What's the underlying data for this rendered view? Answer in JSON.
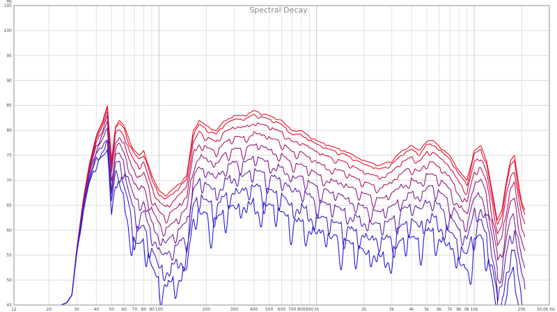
{
  "chart_data": {
    "type": "line",
    "title": "Spectral Decay",
    "xscale": "log",
    "xlim": [
      12,
      30000
    ],
    "ylim": [
      45,
      105
    ],
    "x_unit": "Hz",
    "y_unit": "dB",
    "grid": true,
    "legend": "none",
    "y_ticks": [
      "45",
      "50",
      "55",
      "60",
      "65",
      "70",
      "75",
      "80",
      "85",
      "90",
      "95",
      "100",
      "105"
    ],
    "x_ticks": [
      {
        "v": 12,
        "label": "12"
      },
      {
        "v": 20,
        "label": "20"
      },
      {
        "v": 30,
        "label": "30"
      },
      {
        "v": 40,
        "label": "40"
      },
      {
        "v": 50,
        "label": "50"
      },
      {
        "v": 60,
        "label": "60"
      },
      {
        "v": 70,
        "label": "70"
      },
      {
        "v": 80,
        "label": "80"
      },
      {
        "v": 90,
        "label": "90"
      },
      {
        "v": 100,
        "label": "100"
      },
      {
        "v": 200,
        "label": "200"
      },
      {
        "v": 300,
        "label": "300"
      },
      {
        "v": 400,
        "label": "400"
      },
      {
        "v": 500,
        "label": "500"
      },
      {
        "v": 600,
        "label": "600"
      },
      {
        "v": 700,
        "label": "700"
      },
      {
        "v": 800,
        "label": "800"
      },
      {
        "v": 900,
        "label": "900"
      },
      {
        "v": 1000,
        "label": "1k"
      },
      {
        "v": 2000,
        "label": "2k"
      },
      {
        "v": 3000,
        "label": "3k"
      },
      {
        "v": 4000,
        "label": "4k"
      },
      {
        "v": 5000,
        "label": "5k"
      },
      {
        "v": 6000,
        "label": "6k"
      },
      {
        "v": 7000,
        "label": "7k"
      },
      {
        "v": 8000,
        "label": "8k"
      },
      {
        "v": 9000,
        "label": "9k"
      },
      {
        "v": 10000,
        "label": "10k"
      },
      {
        "v": 20000,
        "label": "20k"
      },
      {
        "v": 30000,
        "label": "30,0k Hz"
      }
    ],
    "envelope": {
      "x": [
        20,
        22,
        24,
        26,
        28,
        30,
        33,
        36,
        40,
        44,
        47,
        50,
        53,
        56,
        60,
        65,
        70,
        75,
        80,
        90,
        100,
        110,
        120,
        130,
        150,
        165,
        180,
        200,
        230,
        260,
        300,
        350,
        400,
        500,
        600,
        700,
        800,
        1000,
        1200,
        1500,
        2000,
        2500,
        3000,
        3500,
        4000,
        4500,
        5000,
        5500,
        6000,
        7000,
        8000,
        9000,
        10000,
        11000,
        12000,
        13000,
        14000,
        15000,
        16000,
        17000,
        18000,
        19000,
        20000,
        21000
      ],
      "y": [
        44,
        45,
        45,
        45.5,
        47,
        56,
        66,
        73,
        79,
        82,
        85,
        74,
        81,
        82,
        81,
        78,
        76,
        75,
        76,
        71,
        68,
        67,
        68,
        69,
        71,
        80,
        82,
        81,
        80,
        82,
        83,
        83,
        84,
        83,
        82,
        80,
        80,
        78,
        77,
        76,
        74,
        73,
        74,
        76,
        77,
        76,
        78,
        78,
        77,
        75,
        72,
        70,
        76,
        77,
        74,
        68,
        62,
        64,
        70,
        74,
        75,
        70,
        66,
        64
      ]
    },
    "series": [
      {
        "offset_db": 0,
        "roughness": 0.4,
        "color": "#e8102a"
      },
      {
        "offset_db": -0.7,
        "roughness": 0.6,
        "color": "#e2102e"
      },
      {
        "offset_db": -2.2,
        "roughness": 1.0,
        "color": "#cc1248"
      },
      {
        "offset_db": -4.2,
        "roughness": 1.7,
        "color": "#b2165e"
      },
      {
        "offset_db": -6.5,
        "roughness": 2.4,
        "color": "#951a78"
      },
      {
        "offset_db": -9.0,
        "roughness": 3.2,
        "color": "#771e92"
      },
      {
        "offset_db": -11.5,
        "roughness": 4.2,
        "color": "#5a20aa"
      },
      {
        "offset_db": -14.5,
        "roughness": 5.4,
        "color": "#3c1ec4"
      },
      {
        "offset_db": -17.5,
        "roughness": 6.6,
        "color": "#2218dc"
      }
    ]
  }
}
